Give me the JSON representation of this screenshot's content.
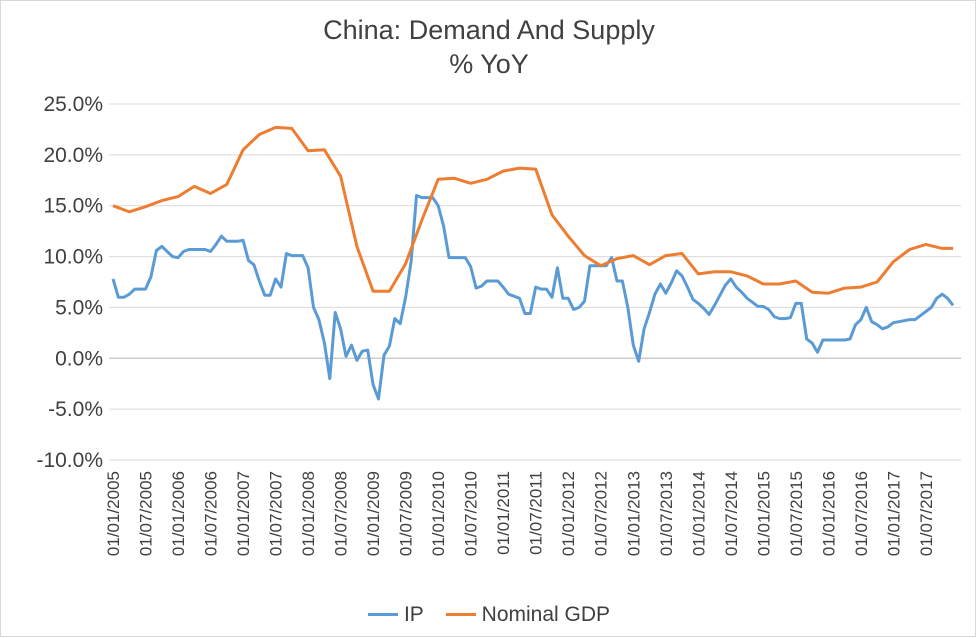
{
  "chart_data": {
    "type": "line",
    "title": "China: Demand And Supply",
    "subtitle": "% YoY",
    "xlabel": "",
    "ylabel": "",
    "ylim": [
      -10,
      25
    ],
    "yticks": [
      "25.0%",
      "20.0%",
      "15.0%",
      "10.0%",
      "5.0%",
      "0.0%",
      "-5.0%",
      "-10.0%"
    ],
    "ytick_values": [
      25,
      20,
      15,
      10,
      5,
      0,
      -5,
      -10
    ],
    "xlim": [
      "2005-01",
      "2017-12"
    ],
    "xticks": [
      "01/01/2005",
      "01/07/2005",
      "01/01/2006",
      "01/07/2006",
      "01/01/2007",
      "01/07/2007",
      "01/01/2008",
      "01/07/2008",
      "01/01/2009",
      "01/07/2009",
      "01/01/2010",
      "01/07/2010",
      "01/01/2011",
      "01/07/2011",
      "01/01/2012",
      "01/07/2012",
      "01/01/2013",
      "01/07/2013",
      "01/01/2014",
      "01/07/2014",
      "01/01/2015",
      "01/07/2015",
      "01/01/2016",
      "01/07/2016",
      "01/01/2017",
      "01/07/2017"
    ],
    "xtick_dates": [
      "2005-01",
      "2005-07",
      "2006-01",
      "2006-07",
      "2007-01",
      "2007-07",
      "2008-01",
      "2008-07",
      "2009-01",
      "2009-07",
      "2010-01",
      "2010-07",
      "2011-01",
      "2011-07",
      "2012-01",
      "2012-07",
      "2013-01",
      "2013-07",
      "2014-01",
      "2014-07",
      "2015-01",
      "2015-07",
      "2016-01",
      "2016-07",
      "2017-01",
      "2017-07"
    ],
    "grid": true,
    "legend": "bottom",
    "series": [
      {
        "name": "IP",
        "color": "#5b9bd5",
        "points": [
          [
            "2005-01",
            7.8
          ],
          [
            "2005-02",
            6.0
          ],
          [
            "2005-03",
            6.0
          ],
          [
            "2005-04",
            6.3
          ],
          [
            "2005-05",
            6.8
          ],
          [
            "2005-06",
            6.8
          ],
          [
            "2005-07",
            6.8
          ],
          [
            "2005-08",
            8.0
          ],
          [
            "2005-09",
            10.6
          ],
          [
            "2005-10",
            11.0
          ],
          [
            "2005-11",
            10.5
          ],
          [
            "2005-12",
            10.0
          ],
          [
            "2006-01",
            9.9
          ],
          [
            "2006-02",
            10.5
          ],
          [
            "2006-03",
            10.7
          ],
          [
            "2006-04",
            10.7
          ],
          [
            "2006-05",
            10.7
          ],
          [
            "2006-06",
            10.7
          ],
          [
            "2006-07",
            10.5
          ],
          [
            "2006-08",
            11.2
          ],
          [
            "2006-09",
            12.0
          ],
          [
            "2006-10",
            11.5
          ],
          [
            "2006-11",
            11.5
          ],
          [
            "2006-12",
            11.5
          ],
          [
            "2007-01",
            11.6
          ],
          [
            "2007-02",
            9.6
          ],
          [
            "2007-03",
            9.2
          ],
          [
            "2007-04",
            7.6
          ],
          [
            "2007-05",
            6.2
          ],
          [
            "2007-06",
            6.2
          ],
          [
            "2007-07",
            7.8
          ],
          [
            "2007-08",
            7.0
          ],
          [
            "2007-09",
            10.3
          ],
          [
            "2007-10",
            10.1
          ],
          [
            "2007-11",
            10.1
          ],
          [
            "2007-12",
            10.1
          ],
          [
            "2008-01",
            8.9
          ],
          [
            "2008-02",
            5.0
          ],
          [
            "2008-03",
            3.8
          ],
          [
            "2008-04",
            1.5
          ],
          [
            "2008-05",
            -2.0
          ],
          [
            "2008-06",
            4.5
          ],
          [
            "2008-07",
            2.9
          ],
          [
            "2008-08",
            0.2
          ],
          [
            "2008-09",
            1.3
          ],
          [
            "2008-10",
            -0.2
          ],
          [
            "2008-11",
            0.7
          ],
          [
            "2008-12",
            0.8
          ],
          [
            "2009-01",
            -2.6
          ],
          [
            "2009-02",
            -4.0
          ],
          [
            "2009-03",
            0.3
          ],
          [
            "2009-04",
            1.2
          ],
          [
            "2009-05",
            3.9
          ],
          [
            "2009-06",
            3.4
          ],
          [
            "2009-07",
            6.0
          ],
          [
            "2009-08",
            9.5
          ],
          [
            "2009-09",
            16.0
          ],
          [
            "2009-10",
            15.8
          ],
          [
            "2009-11",
            15.8
          ],
          [
            "2009-12",
            15.8
          ],
          [
            "2010-01",
            15.0
          ],
          [
            "2010-02",
            13.0
          ],
          [
            "2010-03",
            9.9
          ],
          [
            "2010-04",
            9.9
          ],
          [
            "2010-05",
            9.9
          ],
          [
            "2010-06",
            9.9
          ],
          [
            "2010-07",
            9.0
          ],
          [
            "2010-08",
            6.9
          ],
          [
            "2010-09",
            7.1
          ],
          [
            "2010-10",
            7.6
          ],
          [
            "2010-11",
            7.6
          ],
          [
            "2010-12",
            7.6
          ],
          [
            "2011-01",
            7.0
          ],
          [
            "2011-02",
            6.3
          ],
          [
            "2011-03",
            6.1
          ],
          [
            "2011-04",
            5.9
          ],
          [
            "2011-05",
            4.4
          ],
          [
            "2011-06",
            4.4
          ],
          [
            "2011-07",
            7.0
          ],
          [
            "2011-08",
            6.8
          ],
          [
            "2011-09",
            6.8
          ],
          [
            "2011-10",
            6.0
          ],
          [
            "2011-11",
            8.9
          ],
          [
            "2011-12",
            5.9
          ],
          [
            "2012-01",
            5.9
          ],
          [
            "2012-02",
            4.8
          ],
          [
            "2012-03",
            5.0
          ],
          [
            "2012-04",
            5.6
          ],
          [
            "2012-05",
            9.1
          ],
          [
            "2012-06",
            9.1
          ],
          [
            "2012-07",
            9.1
          ],
          [
            "2012-08",
            9.1
          ],
          [
            "2012-09",
            9.9
          ],
          [
            "2012-10",
            7.6
          ],
          [
            "2012-11",
            7.6
          ],
          [
            "2012-12",
            5.0
          ],
          [
            "2013-01",
            1.3
          ],
          [
            "2013-02",
            -0.3
          ],
          [
            "2013-03",
            2.9
          ],
          [
            "2013-04",
            4.5
          ],
          [
            "2013-05",
            6.3
          ],
          [
            "2013-06",
            7.3
          ],
          [
            "2013-07",
            6.4
          ],
          [
            "2013-08",
            7.4
          ],
          [
            "2013-09",
            8.6
          ],
          [
            "2013-10",
            8.1
          ],
          [
            "2013-11",
            7.0
          ],
          [
            "2013-12",
            5.8
          ],
          [
            "2014-01",
            5.4
          ],
          [
            "2014-02",
            4.9
          ],
          [
            "2014-03",
            4.3
          ],
          [
            "2014-04",
            5.2
          ],
          [
            "2014-05",
            6.2
          ],
          [
            "2014-06",
            7.2
          ],
          [
            "2014-07",
            7.8
          ],
          [
            "2014-08",
            7.0
          ],
          [
            "2014-09",
            6.5
          ],
          [
            "2014-10",
            5.9
          ],
          [
            "2014-11",
            5.5
          ],
          [
            "2014-12",
            5.1
          ],
          [
            "2015-01",
            5.1
          ],
          [
            "2015-02",
            4.8
          ],
          [
            "2015-03",
            4.1
          ],
          [
            "2015-04",
            3.9
          ],
          [
            "2015-05",
            3.9
          ],
          [
            "2015-06",
            4.0
          ],
          [
            "2015-07",
            5.4
          ],
          [
            "2015-08",
            5.4
          ],
          [
            "2015-09",
            1.9
          ],
          [
            "2015-10",
            1.5
          ],
          [
            "2015-11",
            0.6
          ],
          [
            "2015-12",
            1.8
          ],
          [
            "2016-01",
            1.8
          ],
          [
            "2016-02",
            1.8
          ],
          [
            "2016-03",
            1.8
          ],
          [
            "2016-04",
            1.8
          ],
          [
            "2016-05",
            1.9
          ],
          [
            "2016-06",
            3.3
          ],
          [
            "2016-07",
            3.8
          ],
          [
            "2016-08",
            5.0
          ],
          [
            "2016-09",
            3.6
          ],
          [
            "2016-10",
            3.3
          ],
          [
            "2016-11",
            2.9
          ],
          [
            "2016-12",
            3.1
          ],
          [
            "2017-01",
            3.5
          ],
          [
            "2017-02",
            3.6
          ],
          [
            "2017-03",
            3.7
          ],
          [
            "2017-04",
            3.8
          ],
          [
            "2017-05",
            3.8
          ],
          [
            "2017-06",
            4.2
          ],
          [
            "2017-07",
            4.6
          ],
          [
            "2017-08",
            5.0
          ],
          [
            "2017-09",
            5.9
          ],
          [
            "2017-10",
            6.3
          ],
          [
            "2017-11",
            5.9
          ],
          [
            "2017-12",
            5.2
          ]
        ]
      },
      {
        "name": "Nominal GDP",
        "color": "#ed7d31",
        "points": [
          [
            "2005-01",
            15.0
          ],
          [
            "2005-04",
            14.4
          ],
          [
            "2005-07",
            14.9
          ],
          [
            "2005-10",
            15.5
          ],
          [
            "2006-01",
            15.9
          ],
          [
            "2006-04",
            16.9
          ],
          [
            "2006-07",
            16.2
          ],
          [
            "2006-10",
            17.1
          ],
          [
            "2007-01",
            20.5
          ],
          [
            "2007-04",
            22.0
          ],
          [
            "2007-07",
            22.7
          ],
          [
            "2007-10",
            22.6
          ],
          [
            "2008-01",
            20.4
          ],
          [
            "2008-04",
            20.5
          ],
          [
            "2008-07",
            17.9
          ],
          [
            "2008-10",
            11.0
          ],
          [
            "2009-01",
            6.6
          ],
          [
            "2009-04",
            6.6
          ],
          [
            "2009-07",
            9.3
          ],
          [
            "2009-10",
            13.6
          ],
          [
            "2010-01",
            17.6
          ],
          [
            "2010-04",
            17.7
          ],
          [
            "2010-07",
            17.2
          ],
          [
            "2010-10",
            17.6
          ],
          [
            "2011-01",
            18.4
          ],
          [
            "2011-04",
            18.7
          ],
          [
            "2011-07",
            18.6
          ],
          [
            "2011-10",
            14.1
          ],
          [
            "2012-01",
            12.0
          ],
          [
            "2012-04",
            10.1
          ],
          [
            "2012-07",
            9.1
          ],
          [
            "2012-10",
            9.8
          ],
          [
            "2013-01",
            10.1
          ],
          [
            "2013-04",
            9.2
          ],
          [
            "2013-07",
            10.1
          ],
          [
            "2013-10",
            10.3
          ],
          [
            "2014-01",
            8.3
          ],
          [
            "2014-04",
            8.5
          ],
          [
            "2014-07",
            8.5
          ],
          [
            "2014-10",
            8.1
          ],
          [
            "2015-01",
            7.3
          ],
          [
            "2015-04",
            7.3
          ],
          [
            "2015-07",
            7.6
          ],
          [
            "2015-10",
            6.5
          ],
          [
            "2016-01",
            6.4
          ],
          [
            "2016-04",
            6.9
          ],
          [
            "2016-07",
            7.0
          ],
          [
            "2016-10",
            7.5
          ],
          [
            "2017-01",
            9.5
          ],
          [
            "2017-04",
            10.7
          ],
          [
            "2017-07",
            11.2
          ],
          [
            "2017-10",
            10.8
          ],
          [
            "2017-12",
            10.8
          ]
        ]
      }
    ]
  }
}
